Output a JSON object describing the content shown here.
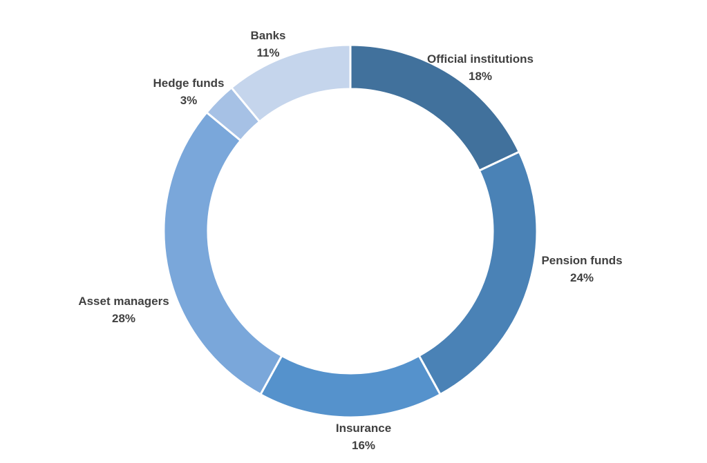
{
  "chart_data": {
    "type": "pie",
    "variant": "donut",
    "title": "",
    "series": [
      {
        "name": "Official institutions",
        "label": "18%",
        "value": 18,
        "color": "#41719C"
      },
      {
        "name": "Pension funds",
        "label": "24%",
        "value": 24,
        "color": "#4A82B6"
      },
      {
        "name": "Insurance",
        "label": "16%",
        "value": 16,
        "color": "#5592CC"
      },
      {
        "name": "Asset managers",
        "label": "28%",
        "value": 28,
        "color": "#7AA7DA"
      },
      {
        "name": "Hedge funds",
        "label": "3%",
        "value": 3,
        "color": "#A6C1E5"
      },
      {
        "name": "Banks",
        "label": "11%",
        "value": 11,
        "color": "#C5D5EC"
      }
    ],
    "legend": "none"
  }
}
